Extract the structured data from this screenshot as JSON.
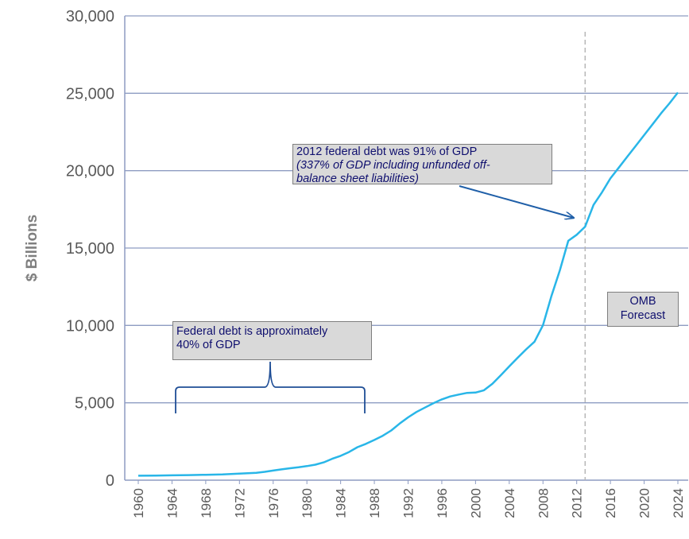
{
  "chart_data": {
    "type": "line",
    "title": "",
    "xlabel": "",
    "ylabel": "$ Billions",
    "xlim": [
      1960,
      2024
    ],
    "ylim": [
      0,
      30000
    ],
    "y_ticks": [
      "0",
      "5,000",
      "10,000",
      "15,000",
      "20,000",
      "25,000",
      "30,000"
    ],
    "x_ticks": [
      "1960",
      "1964",
      "1968",
      "1972",
      "1976",
      "1980",
      "1984",
      "1988",
      "1992",
      "1996",
      "2000",
      "2004",
      "2008",
      "2012",
      "2016",
      "2020",
      "2024"
    ],
    "grid": "horizontal",
    "line_color": "#29b6e8",
    "grid_color": "#8e9cc2",
    "forecast_line_x": 2013,
    "series": [
      {
        "x": [
          1960,
          1962,
          1964,
          1966,
          1968,
          1970,
          1972,
          1974,
          1975,
          1976,
          1977,
          1978,
          1979,
          1980,
          1981,
          1982,
          1983,
          1984,
          1985,
          1986,
          1987,
          1988,
          1989,
          1990,
          1991,
          1992,
          1993,
          1994,
          1995,
          1996,
          1997,
          1998,
          1999,
          2000,
          2001,
          2002,
          2003,
          2004,
          2005,
          2006,
          2007,
          2008,
          2009,
          2010,
          2011,
          2012,
          2013,
          2014,
          2015,
          2016,
          2017,
          2018,
          2019,
          2020,
          2021,
          2022,
          2023,
          2024
        ],
        "values": [
          290,
          300,
          315,
          330,
          350,
          370,
          420,
          480,
          540,
          620,
          700,
          770,
          830,
          910,
          1000,
          1150,
          1380,
          1570,
          1820,
          2130,
          2350,
          2600,
          2870,
          3210,
          3660,
          4060,
          4410,
          4690,
          4970,
          5220,
          5410,
          5530,
          5640,
          5660,
          5810,
          6230,
          6780,
          7350,
          7910,
          8450,
          8950,
          10020,
          11900,
          13560,
          15470,
          15860,
          16380,
          17790,
          18600,
          19500,
          20200,
          20900,
          21600,
          22300,
          23000,
          23700,
          24350,
          25050
        ]
      }
    ],
    "annotations": {
      "debt_2012": {
        "line1": "2012 federal debt was 91% of GDP",
        "line2": "(337% of GDP including unfunded off-",
        "line3": "balance sheet liabilities)"
      },
      "gdp_40": {
        "line1": "Federal debt is approximately",
        "line2": "40% of GDP"
      },
      "omb": {
        "line1": "OMB",
        "line2": "Forecast"
      }
    }
  }
}
